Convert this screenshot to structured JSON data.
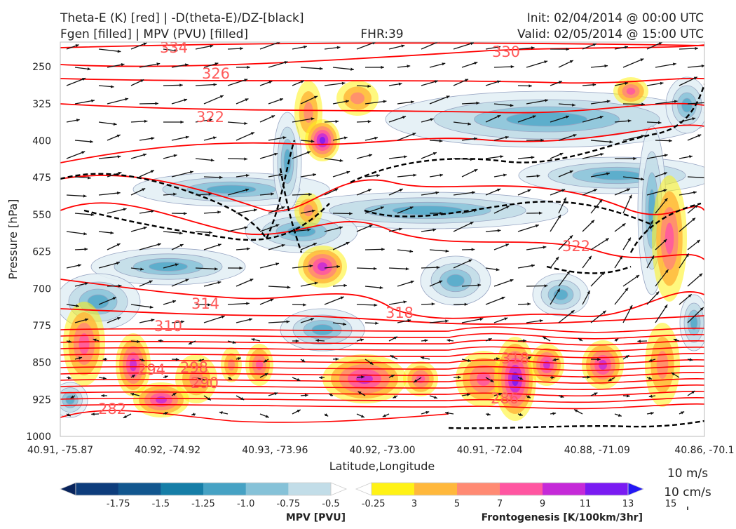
{
  "chart_data": {
    "type": "heatmap",
    "title": {
      "left_line1": "Theta-E (K) [red] | -D(theta-E)/DZ-[black]",
      "left_line2": "Fgen [filled] | MPV (PVU) [filled]",
      "center": "FHR:39",
      "right_line1": "Init: 02/04/2014 @ 00:00 UTC",
      "right_line2": "Valid: 02/05/2014 @ 15:00 UTC"
    },
    "xlabel": "Latitude,Longitude",
    "ylabel": "Pressure [hPa]",
    "x_ticks": [
      "40.91, -75.87",
      "40.92, -74.92",
      "40.93, -73.96",
      "40.92, -73.00",
      "40.91, -72.04",
      "40.88, -71.09",
      "40.86, -70.1"
    ],
    "y_ticks": [
      250,
      325,
      400,
      475,
      550,
      625,
      700,
      775,
      850,
      925,
      1000
    ],
    "y_range": [
      200,
      1000
    ],
    "y_inverted": true,
    "theta_e_contour_labels": [
      "334",
      "330",
      "326",
      "322",
      "322",
      "318",
      "314",
      "310",
      "298",
      "294",
      "290",
      "286",
      "282",
      "318"
    ],
    "vector_key": {
      "label1": "10 m/s",
      "label2": "10 cm/s"
    },
    "colorbars": [
      {
        "label": "MPV [PVU]",
        "ticks": [
          "-1.75",
          "-1.5",
          "-1.25",
          "-1.0",
          "-0.75",
          "-0.5",
          "-0.25"
        ],
        "colors": [
          "#08245c",
          "#0e3d7c",
          "#12578f",
          "#167ea7",
          "#46a2c4",
          "#86c2d8",
          "#c2dde8",
          "#ffffff"
        ]
      },
      {
        "label": "Frontogenesis [K/100km/3hr]",
        "ticks": [
          "3",
          "5",
          "7",
          "9",
          "11",
          "13",
          "15"
        ],
        "colors": [
          "#ffffff",
          "#fff215",
          "#ffb83c",
          "#ff8a73",
          "#ff56a1",
          "#c52ad8",
          "#7a1bf2",
          "#2418f5"
        ]
      }
    ],
    "colors": {
      "theta_e": "#ff0000",
      "stability": "#000000",
      "mpv_fill": "#c2dde8",
      "fgen_fill": "#fff215",
      "wind_vectors": "#111111"
    }
  }
}
